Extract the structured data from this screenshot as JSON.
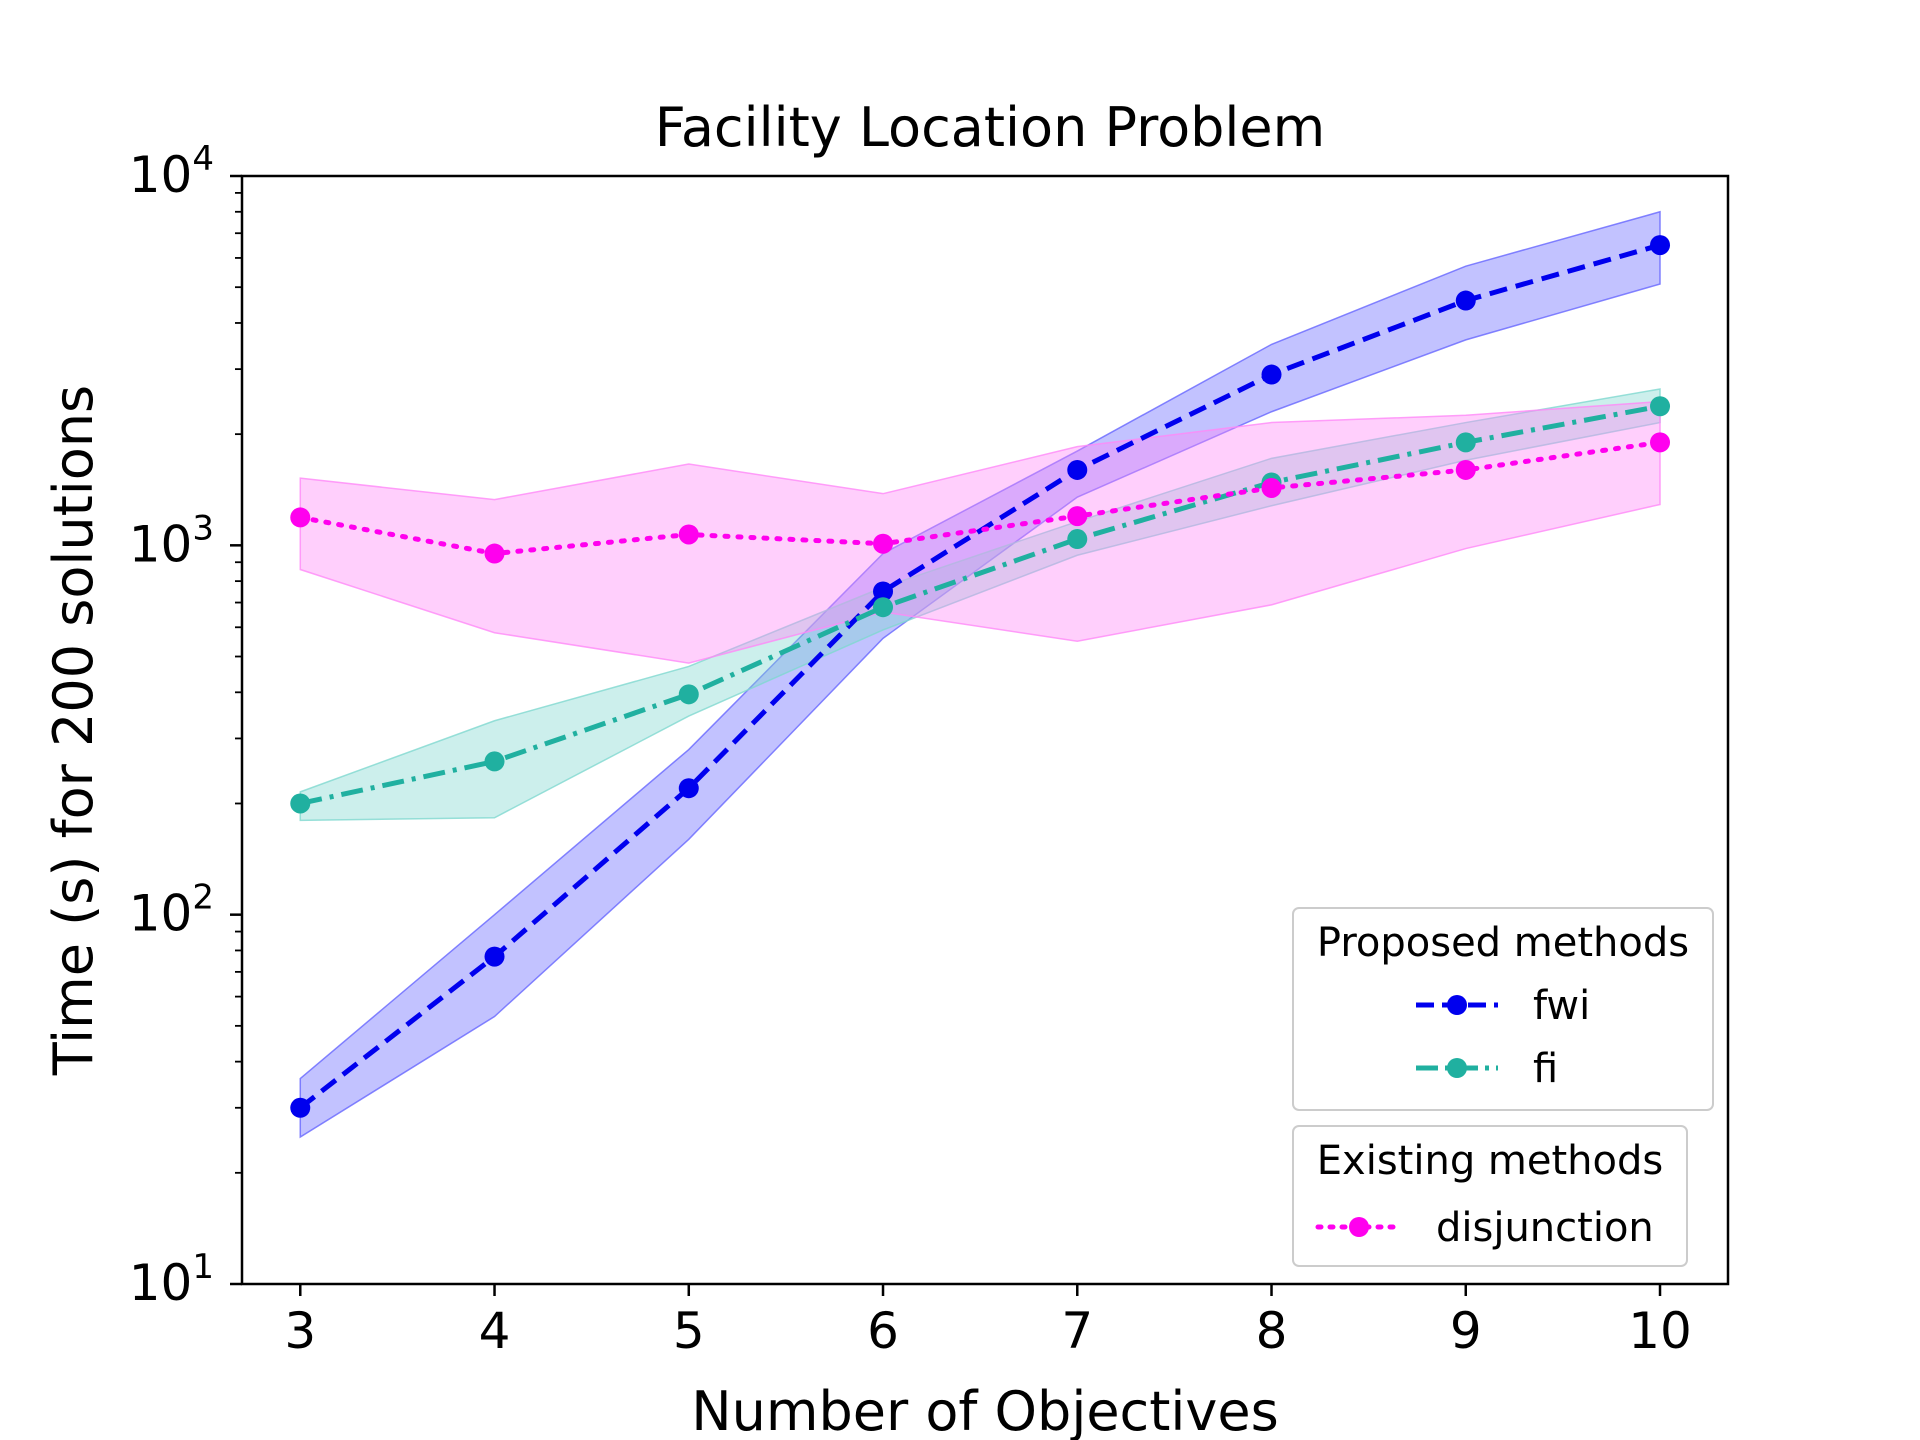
{
  "chart_data": {
    "type": "line",
    "title": "Facility Location Problem",
    "xlabel": "Number of Objectives",
    "ylabel": "Time (s) for 200 solutions",
    "x": [
      3,
      4,
      5,
      6,
      7,
      8,
      9,
      10
    ],
    "xlim": [
      2.7,
      10.35
    ],
    "ylim": [
      10,
      10000
    ],
    "yscale": "log",
    "yticks": [
      {
        "base": "10",
        "exp": "1",
        "value": 10
      },
      {
        "base": "10",
        "exp": "2",
        "value": 100
      },
      {
        "base": "10",
        "exp": "3",
        "value": 1000
      },
      {
        "base": "10",
        "exp": "4",
        "value": 10000
      }
    ],
    "grid": false,
    "series": [
      {
        "name": "fwi",
        "color": "#0000ee",
        "band_color": "#6666ff",
        "linestyle": "dashed",
        "values": [
          30,
          77,
          220,
          750,
          1600,
          2900,
          4600,
          6500
        ],
        "lower": [
          25,
          53,
          160,
          560,
          1350,
          2300,
          3600,
          5100
        ],
        "upper": [
          36,
          100,
          280,
          950,
          1800,
          3500,
          5700,
          8000
        ]
      },
      {
        "name": "fi",
        "color": "#20b0a0",
        "band_color": "#80d8d0",
        "linestyle": "dashdot",
        "values": [
          200,
          260,
          395,
          680,
          1040,
          1480,
          1900,
          2380
        ],
        "lower": [
          180,
          183,
          345,
          590,
          940,
          1280,
          1700,
          2150
        ],
        "upper": [
          215,
          335,
          470,
          770,
          1160,
          1720,
          2150,
          2650
        ]
      },
      {
        "name": "disjunction",
        "color": "#ff00ee",
        "band_color": "#ff88f8",
        "linestyle": "dotted",
        "values": [
          1190,
          950,
          1070,
          1010,
          1200,
          1430,
          1600,
          1900
        ],
        "lower": [
          860,
          580,
          480,
          660,
          550,
          690,
          980,
          1290
        ],
        "upper": [
          1520,
          1330,
          1660,
          1380,
          1850,
          2150,
          2250,
          2450
        ]
      }
    ],
    "legend": {
      "placement": "lower-right",
      "groups": [
        {
          "title": "Proposed methods",
          "entries": [
            "fwi",
            "fi"
          ]
        },
        {
          "title": "Existing methods",
          "entries": [
            "disjunction"
          ]
        }
      ]
    }
  }
}
